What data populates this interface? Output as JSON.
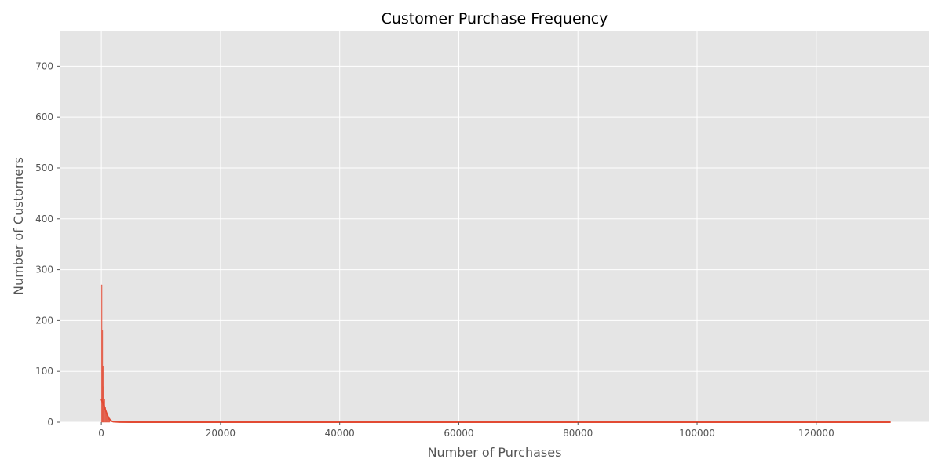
{
  "chart_data": {
    "type": "histogram",
    "title": "Customer Purchase Frequency",
    "xlabel": "Number of Purchases",
    "ylabel": "Number of Customers",
    "xlim": [
      -7000,
      139000
    ],
    "ylim": [
      0,
      770
    ],
    "xticks": [
      0,
      20000,
      40000,
      60000,
      80000,
      100000,
      120000
    ],
    "xtick_labels": [
      "0",
      "20000",
      "40000",
      "60000",
      "80000",
      "100000",
      "120000"
    ],
    "yticks": [
      0,
      100,
      200,
      300,
      400,
      500,
      600,
      700
    ],
    "ytick_labels": [
      "0",
      "100",
      "200",
      "300",
      "400",
      "500",
      "600",
      "700"
    ],
    "grid": true,
    "style": "ggplot",
    "series": [
      {
        "kind": "bars",
        "color": "#E24A33",
        "bin_width": 120,
        "bins": [
          {
            "x": 0,
            "y": 270
          },
          {
            "x": 120,
            "y": 180
          },
          {
            "x": 240,
            "y": 110
          },
          {
            "x": 360,
            "y": 70
          },
          {
            "x": 480,
            "y": 45
          },
          {
            "x": 600,
            "y": 30
          },
          {
            "x": 720,
            "y": 20
          },
          {
            "x": 840,
            "y": 14
          },
          {
            "x": 960,
            "y": 10
          },
          {
            "x": 1080,
            "y": 7
          },
          {
            "x": 1200,
            "y": 5
          },
          {
            "x": 1320,
            "y": 3
          }
        ]
      },
      {
        "kind": "kde",
        "color": "#E24A33",
        "points": [
          [
            0,
            45
          ],
          [
            250,
            38
          ],
          [
            500,
            30
          ],
          [
            750,
            22
          ],
          [
            1000,
            14
          ],
          [
            1250,
            8
          ],
          [
            1500,
            4
          ],
          [
            1750,
            2
          ],
          [
            2000,
            1
          ],
          [
            2500,
            0.5
          ],
          [
            3000,
            0.2
          ],
          [
            5000,
            0.1
          ],
          [
            10000,
            0.05
          ],
          [
            132500,
            0
          ]
        ]
      }
    ]
  }
}
